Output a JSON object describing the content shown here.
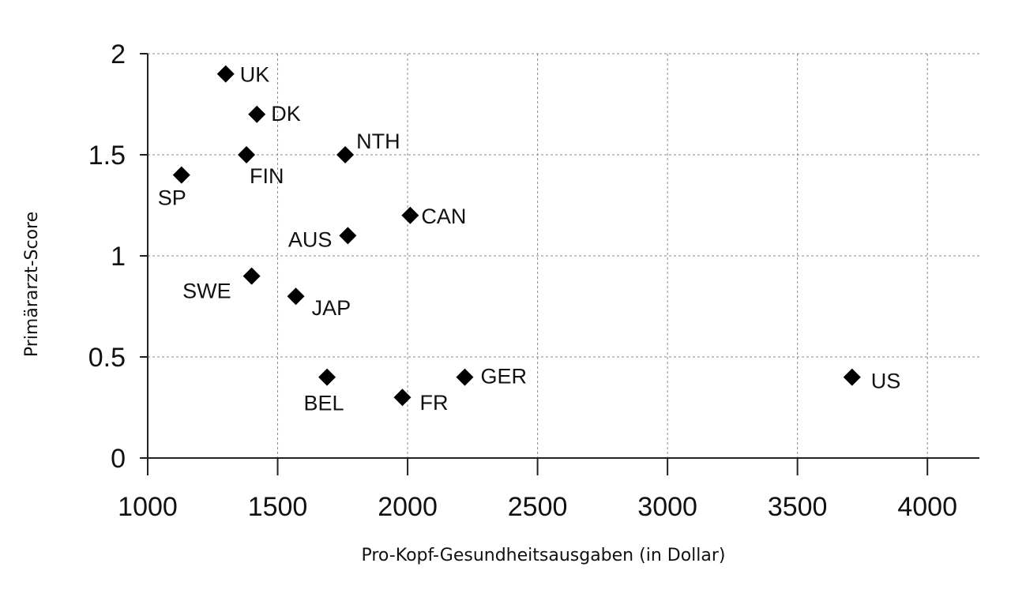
{
  "chart_data": {
    "type": "scatter",
    "title": "",
    "xlabel": "Pro-Kopf-Gesundheitsausgaben (in Dollar)",
    "ylabel": "Primärarzt-Score",
    "xlim": [
      1000,
      4200
    ],
    "ylim": [
      0,
      2
    ],
    "x_ticks": [
      1000,
      1500,
      2000,
      2500,
      3000,
      3500,
      4000
    ],
    "y_ticks": [
      0,
      0.5,
      1,
      1.5,
      2
    ],
    "grid": true,
    "legend": "none",
    "marker": "diamond",
    "marker_color": "#000000",
    "points": [
      {
        "label": "UK",
        "x": 1300,
        "y": 1.9
      },
      {
        "label": "DK",
        "x": 1420,
        "y": 1.7
      },
      {
        "label": "FIN",
        "x": 1380,
        "y": 1.5
      },
      {
        "label": "NTH",
        "x": 1760,
        "y": 1.5
      },
      {
        "label": "SP",
        "x": 1130,
        "y": 1.4
      },
      {
        "label": "CAN",
        "x": 2010,
        "y": 1.2
      },
      {
        "label": "AUS",
        "x": 1770,
        "y": 1.1
      },
      {
        "label": "SWE",
        "x": 1400,
        "y": 0.9
      },
      {
        "label": "JAP",
        "x": 1570,
        "y": 0.8
      },
      {
        "label": "BEL",
        "x": 1690,
        "y": 0.4
      },
      {
        "label": "GER",
        "x": 2220,
        "y": 0.4
      },
      {
        "label": "FR",
        "x": 1980,
        "y": 0.3
      },
      {
        "label": "US",
        "x": 3710,
        "y": 0.4
      }
    ]
  }
}
